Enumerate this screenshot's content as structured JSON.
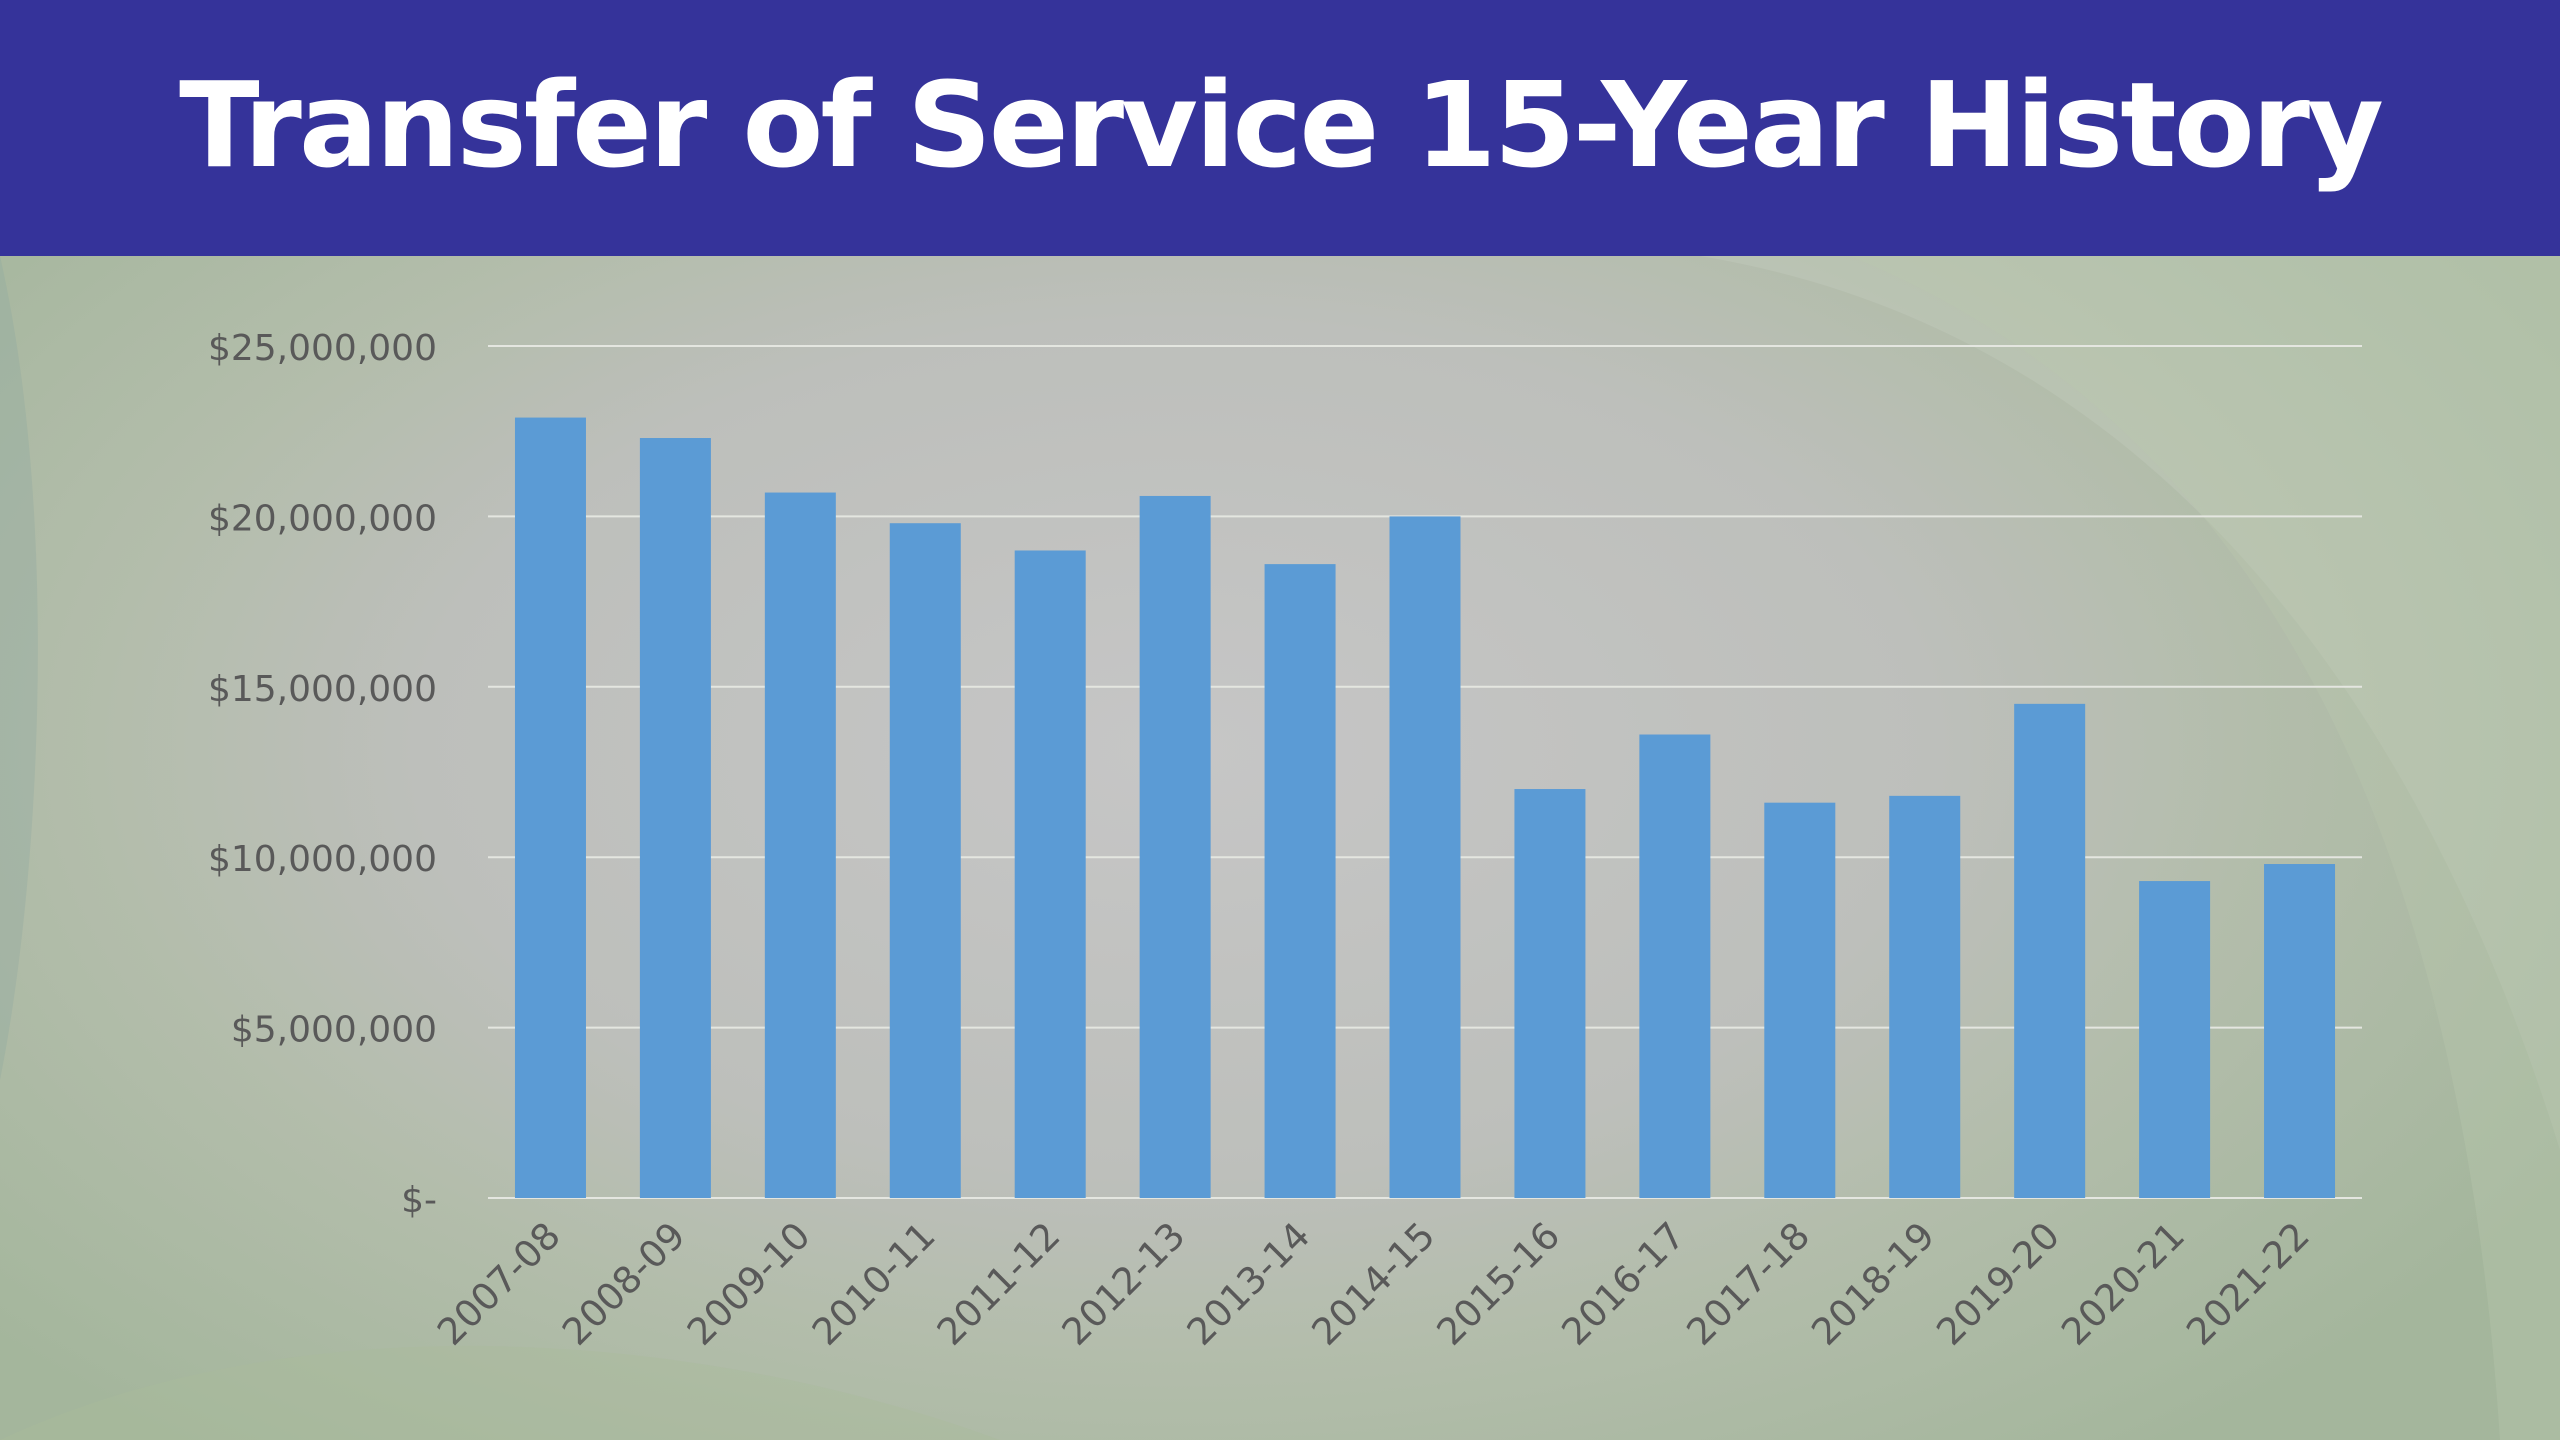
{
  "header": {
    "title": "Transfer of Service 15-Year History"
  },
  "colors": {
    "header_bg": "#35339a",
    "bar": "#5b9bd5",
    "gridline": "#e4e6e0",
    "tick_text": "#595959"
  },
  "chart_data": {
    "type": "bar",
    "title": "",
    "xlabel": "",
    "ylabel": "",
    "categories": [
      "2007-08",
      "2008-09",
      "2009-10",
      "2010-11",
      "2011-12",
      "2012-13",
      "2013-14",
      "2014-15",
      "2015-16",
      "2016-17",
      "2017-18",
      "2018-19",
      "2019-20",
      "2020-21",
      "2021-22"
    ],
    "values": [
      22900000,
      22300000,
      20700000,
      19800000,
      19000000,
      20600000,
      18600000,
      20000000,
      12000000,
      13600000,
      11600000,
      11800000,
      14500000,
      9300000,
      9800000
    ],
    "ylim": [
      0,
      25000000
    ],
    "yticks": [
      0,
      5000000,
      10000000,
      15000000,
      20000000,
      25000000
    ],
    "ytick_labels": [
      "$-",
      "$5,000,000",
      "$10,000,000",
      "$15,000,000",
      "$20,000,000",
      "$25,000,000"
    ],
    "grid": true,
    "legend": "none",
    "bar_color": "#5b9bd5"
  }
}
